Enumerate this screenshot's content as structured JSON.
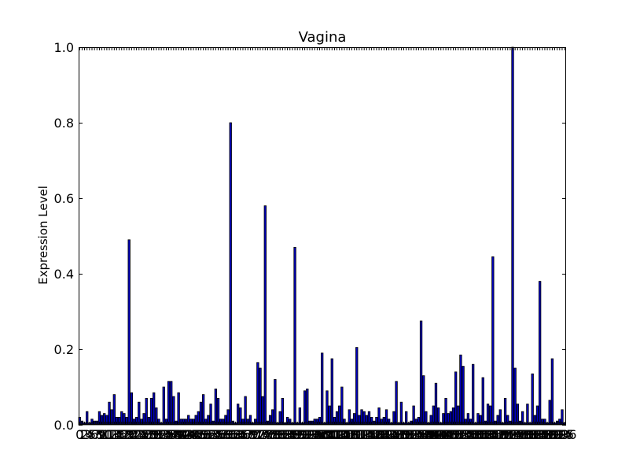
{
  "chart_data": {
    "type": "bar",
    "title": "Vagina",
    "xlabel": "",
    "ylabel": "Expression Level",
    "ylim": [
      0,
      1.0
    ],
    "yticks": [
      "0.0",
      "0.2",
      "0.4",
      "0.6",
      "0.8",
      "1.0"
    ],
    "grid": false,
    "bar_color": "#0000bf",
    "edge_color": "#000000",
    "values": [
      0.02,
      0.01,
      0.005,
      0.035,
      0.005,
      0.015,
      0.01,
      0.01,
      0.035,
      0.025,
      0.03,
      0.025,
      0.06,
      0.04,
      0.08,
      0.02,
      0.02,
      0.035,
      0.03,
      0.02,
      0.49,
      0.085,
      0.015,
      0.02,
      0.06,
      0.015,
      0.03,
      0.07,
      0.02,
      0.07,
      0.085,
      0.045,
      0.015,
      0.005,
      0.1,
      0.015,
      0.115,
      0.115,
      0.075,
      0.01,
      0.085,
      0.015,
      0.015,
      0.015,
      0.025,
      0.015,
      0.015,
      0.025,
      0.035,
      0.06,
      0.08,
      0.015,
      0.025,
      0.055,
      0.01,
      0.095,
      0.07,
      0.015,
      0.015,
      0.025,
      0.04,
      0.8,
      0.01,
      0.005,
      0.055,
      0.045,
      0.015,
      0.075,
      0.015,
      0.025,
      0.005,
      0.015,
      0.165,
      0.15,
      0.075,
      0.58,
      0.01,
      0.025,
      0.04,
      0.12,
      0.005,
      0.035,
      0.07,
      0.005,
      0.02,
      0.015,
      0.005,
      0.47,
      0.005,
      0.045,
      0.005,
      0.09,
      0.095,
      0.01,
      0.01,
      0.015,
      0.015,
      0.02,
      0.19,
      0.005,
      0.09,
      0.05,
      0.175,
      0.02,
      0.035,
      0.05,
      0.1,
      0.015,
      0.005,
      0.04,
      0.015,
      0.03,
      0.205,
      0.025,
      0.04,
      0.035,
      0.025,
      0.035,
      0.02,
      0.01,
      0.02,
      0.045,
      0.015,
      0.02,
      0.04,
      0.015,
      0.005,
      0.035,
      0.115,
      0.005,
      0.06,
      0.005,
      0.035,
      0.005,
      0.01,
      0.05,
      0.015,
      0.02,
      0.275,
      0.13,
      0.035,
      0.005,
      0.025,
      0.05,
      0.11,
      0.045,
      0.005,
      0.03,
      0.07,
      0.03,
      0.035,
      0.045,
      0.14,
      0.05,
      0.185,
      0.155,
      0.015,
      0.03,
      0.015,
      0.16,
      0.005,
      0.03,
      0.025,
      0.125,
      0.01,
      0.055,
      0.05,
      0.445,
      0.01,
      0.025,
      0.04,
      0.005,
      0.07,
      0.025,
      0.01,
      1.0,
      0.15,
      0.055,
      0.01,
      0.035,
      0.005,
      0.055,
      0.005,
      0.135,
      0.025,
      0.05,
      0.38,
      0.015,
      0.015,
      0.005,
      0.065,
      0.175,
      0.005,
      0.01,
      0.015,
      0.04,
      0.005
    ]
  }
}
